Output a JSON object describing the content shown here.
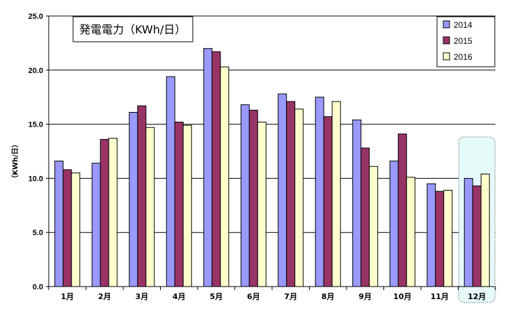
{
  "chart_data": {
    "type": "bar",
    "title": "発電電力（KWh/日）",
    "ylabel": "（KWh/日）",
    "xlabel": "",
    "categories": [
      "1月",
      "2月",
      "3月",
      "4月",
      "5月",
      "6月",
      "7月",
      "8月",
      "9月",
      "10月",
      "11月",
      "12月"
    ],
    "series": [
      {
        "name": "2014",
        "color": "#9999ff",
        "values": [
          11.6,
          11.4,
          16.1,
          19.4,
          22.0,
          16.8,
          17.8,
          17.5,
          15.4,
          11.6,
          9.5,
          10.0
        ]
      },
      {
        "name": "2015",
        "color": "#993366",
        "values": [
          10.8,
          13.6,
          16.7,
          15.2,
          21.7,
          16.3,
          17.1,
          15.7,
          12.8,
          14.1,
          8.8,
          9.3
        ]
      },
      {
        "name": "2016",
        "color": "#ffffcc",
        "values": [
          10.5,
          13.7,
          14.7,
          14.9,
          20.3,
          15.2,
          16.4,
          17.1,
          11.1,
          10.1,
          8.9,
          10.4
        ]
      }
    ],
    "ylim": [
      0,
      25
    ],
    "yticks": [
      "0.0",
      "5.0",
      "10.0",
      "15.0",
      "20.0",
      "25.0"
    ],
    "grid": true,
    "legend_position": "top-right",
    "highlight_category": "12月"
  }
}
